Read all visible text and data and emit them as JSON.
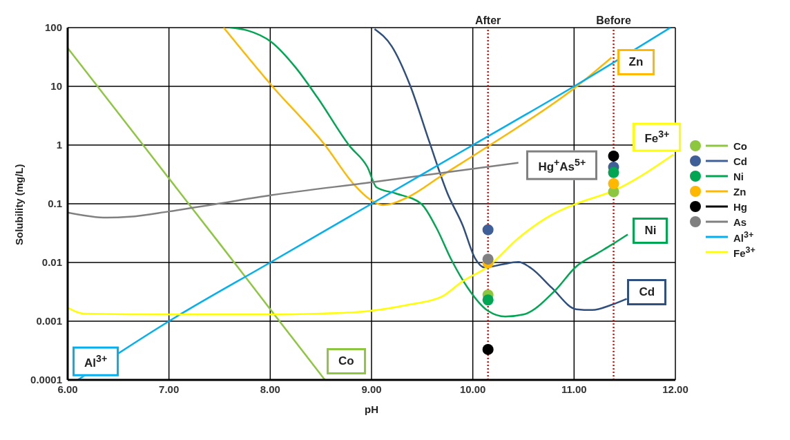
{
  "chart_data": {
    "type": "line",
    "xlabel": "pH",
    "ylabel": "Solubility (mg/L)",
    "log": "y",
    "grid": true,
    "legend": "right",
    "xlim": [
      6,
      12
    ],
    "xticks": [
      {
        "value": 6,
        "label": "6.00"
      },
      {
        "value": 7,
        "label": "7.00"
      },
      {
        "value": 8,
        "label": "8.00"
      },
      {
        "value": 9,
        "label": "9.00"
      },
      {
        "value": 10,
        "label": "10.00"
      },
      {
        "value": 11,
        "label": "11.00"
      },
      {
        "value": 12,
        "label": "12.00"
      }
    ],
    "ylim": [
      0.0001,
      100
    ],
    "yticks": [
      0.0001,
      0.001,
      0.01,
      0.1,
      1,
      10,
      100
    ],
    "ref_lines": [
      {
        "axis": "x",
        "value": 10.15,
        "label": "After",
        "color": "#ff0000",
        "line_style": "dotted"
      },
      {
        "axis": "x",
        "value": 11.39,
        "label": "Before",
        "color": "#ff0000",
        "line_style": "dotted"
      }
    ],
    "series": [
      {
        "type": "scatter",
        "name": "Co",
        "color": "#8dc63f",
        "marker": "circle",
        "x": [
          10.15,
          11.39
        ],
        "values": [
          0.0028,
          0.16
        ]
      },
      {
        "type": "scatter",
        "name": "Cd",
        "color": "#3f5f99",
        "marker": "circle",
        "x": [
          10.15,
          11.39
        ],
        "values": [
          0.036,
          0.42
        ]
      },
      {
        "type": "scatter",
        "name": "Ni",
        "color": "#00a651",
        "marker": "circle",
        "x": [
          10.15,
          11.39
        ],
        "values": [
          0.0023,
          0.34
        ]
      },
      {
        "type": "scatter",
        "name": "Zn",
        "color": "#ffb800",
        "marker": "circle",
        "x": [
          10.15,
          11.39
        ],
        "values": [
          0.0098,
          0.22
        ]
      },
      {
        "type": "scatter",
        "name": "Hg",
        "color": "#000000",
        "marker": "circle",
        "x": [
          10.15,
          11.39
        ],
        "values": [
          0.00033,
          0.65
        ]
      },
      {
        "type": "scatter",
        "name": "As",
        "color": "#808080",
        "marker": "circle",
        "x": [
          10.15
        ],
        "values": [
          0.0114
        ]
      },
      {
        "type": "line",
        "color": "#8dc63f",
        "x": [
          6,
          6.5,
          7,
          7.5,
          8,
          8.54
        ],
        "values": [
          45,
          3.5,
          0.27,
          0.021,
          0.0016,
          0.0001
        ]
      },
      {
        "type": "line",
        "color": "#2f4f7f",
        "x": [
          9.03,
          9.2,
          9.38,
          9.57,
          9.75,
          9.9,
          10.02,
          10.12,
          10.28,
          10.45,
          10.58,
          10.78,
          11.02,
          11.18,
          11.37,
          11.52
        ],
        "values": [
          95,
          48,
          10.5,
          1.15,
          0.15,
          0.043,
          0.012,
          0.0082,
          0.0092,
          0.0102,
          0.0079,
          0.0037,
          0.0016,
          0.00155,
          0.0019,
          0.0024
        ]
      },
      {
        "type": "line",
        "color": "#00a651",
        "x": [
          7.6,
          7.77,
          8.01,
          8.25,
          8.47,
          8.78,
          8.96,
          9.05,
          9.24,
          9.49,
          9.64,
          9.79,
          9.95,
          10.15,
          10.32,
          10.5,
          10.81,
          11.02,
          11.22,
          11.37,
          11.53
        ],
        "values": [
          100,
          90,
          57,
          21,
          6.3,
          0.98,
          0.42,
          0.19,
          0.15,
          0.1,
          0.039,
          0.011,
          0.0037,
          0.0015,
          0.0012,
          0.0013,
          0.0033,
          0.0085,
          0.014,
          0.02,
          0.03
        ]
      },
      {
        "type": "line",
        "color": "#ffb800",
        "x": [
          7.54,
          8.01,
          8.54,
          8.83,
          8.98,
          9.11,
          9.36,
          9.69,
          10.17,
          11.02,
          11.37
        ],
        "values": [
          100,
          10.5,
          1,
          0.21,
          0.12,
          0.095,
          0.13,
          0.3,
          1,
          9.8,
          31
        ]
      },
      {
        "type": "line",
        "color": "#808080",
        "x": [
          6,
          6.39,
          6.61,
          7,
          7.48,
          8.01,
          8.98,
          10.45
        ],
        "values": [
          0.071,
          0.058,
          0.06,
          0.074,
          0.1,
          0.14,
          0.23,
          0.5
        ]
      },
      {
        "type": "line",
        "name": "Al$^{3+}$",
        "color": "#00b0f0",
        "x": [
          6.1,
          7,
          8,
          9,
          10,
          11,
          11.95
        ],
        "values": [
          0.0001,
          0.001,
          0.01,
          0.1,
          1,
          10,
          100
        ]
      },
      {
        "type": "line",
        "name": "Fe$^{3+}$",
        "color": "#ffff00",
        "x": [
          6,
          6.15,
          7,
          8,
          8.5,
          8.91,
          9.36,
          9.69,
          9.9,
          10.15,
          10.45,
          10.78,
          11.02,
          11.4,
          11.98
        ],
        "values": [
          0.0017,
          0.00135,
          0.0013,
          0.0013,
          0.00135,
          0.00145,
          0.0019,
          0.0026,
          0.0048,
          0.0085,
          0.026,
          0.065,
          0.1,
          0.17,
          0.69
        ]
      }
    ],
    "annotations": [
      "Co",
      "Cd",
      "Ni",
      "Zn",
      "Hg$^{+}$As$^{5+}$",
      "Al$^{3+}$",
      "Fe$^{3+}$"
    ]
  }
}
